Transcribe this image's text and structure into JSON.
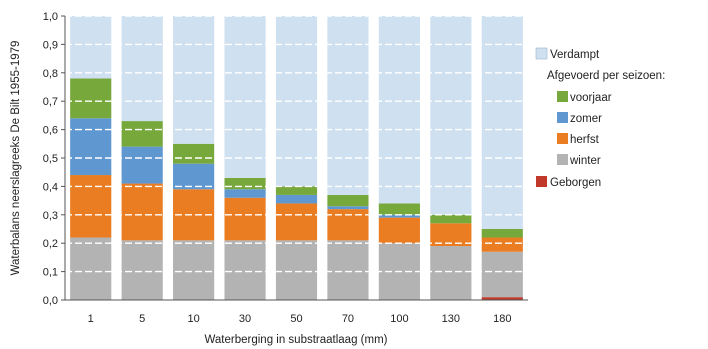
{
  "chart_data": {
    "type": "bar",
    "stacked": true,
    "xlabel": "Waterberging in substraatlaag (mm)",
    "ylabel": "Waterbalans neerslagreeks De Bilt 1955-1979",
    "ylim": [
      0,
      1
    ],
    "yticks": [
      "0,0",
      "0,1",
      "0,2",
      "0,3",
      "0,4",
      "0,5",
      "0,6",
      "0,7",
      "0,8",
      "0,9",
      "1,0"
    ],
    "categories": [
      "1",
      "5",
      "10",
      "30",
      "50",
      "70",
      "100",
      "130",
      "180"
    ],
    "grid": "horizontal dashed white lines",
    "legend_placement": "right",
    "legend": {
      "verdampt": "Verdampt",
      "group_title": "Afgevoerd per seizoen:",
      "voorjaar": "voorjaar",
      "zomer": "zomer",
      "herfst": "herfst",
      "winter": "winter",
      "geborgen": "Geborgen"
    },
    "series": [
      {
        "name": "Geborgen",
        "color": "#c0392b",
        "values": [
          0,
          0,
          0,
          0,
          0,
          0,
          0,
          0,
          0.01
        ]
      },
      {
        "name": "winter",
        "color": "#b3b3b3",
        "values": [
          0.22,
          0.21,
          0.21,
          0.21,
          0.21,
          0.21,
          0.2,
          0.19,
          0.16
        ]
      },
      {
        "name": "herfst",
        "color": "#ea7d21",
        "values": [
          0.22,
          0.2,
          0.18,
          0.15,
          0.13,
          0.11,
          0.09,
          0.08,
          0.05
        ]
      },
      {
        "name": "zomer",
        "color": "#5f97d1",
        "values": [
          0.2,
          0.13,
          0.09,
          0.03,
          0.03,
          0.01,
          0.01,
          0.0,
          0.0
        ]
      },
      {
        "name": "voorjaar",
        "color": "#77a83c",
        "values": [
          0.14,
          0.09,
          0.07,
          0.04,
          0.03,
          0.04,
          0.04,
          0.03,
          0.03
        ]
      },
      {
        "name": "Verdampt",
        "color": "#cfe0f1",
        "values": [
          0.22,
          0.37,
          0.45,
          0.57,
          0.6,
          0.63,
          0.66,
          0.7,
          0.75
        ]
      }
    ]
  }
}
